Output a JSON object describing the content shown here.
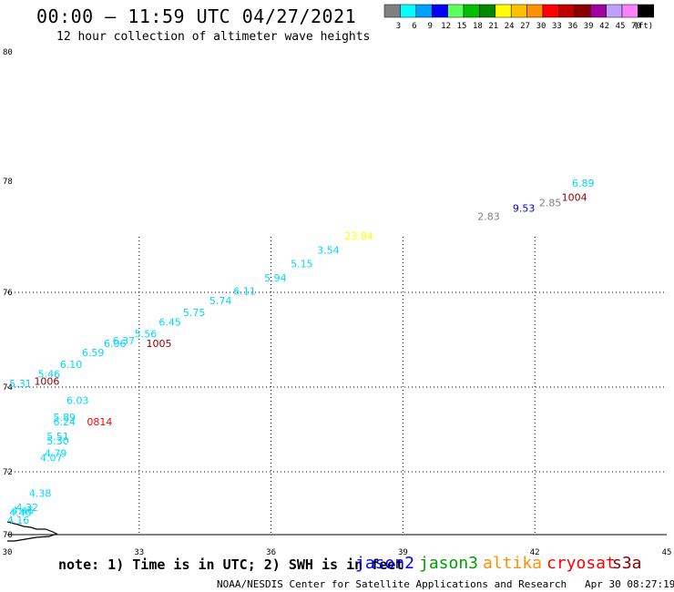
{
  "header": {
    "title": "00:00 – 11:59 UTC 04/27/2021",
    "subtitle": "12 hour collection of altimeter wave heights"
  },
  "colorbar": {
    "swatches": [
      "#808080",
      "#00ffff",
      "#00a0ff",
      "#0000ff",
      "#60ff60",
      "#00c000",
      "#008800",
      "#ffff00",
      "#ffc000",
      "#ff9000",
      "#ff0000",
      "#c00000",
      "#880000",
      "#a000a0",
      "#c0a0ff",
      "#ff80ff",
      "#000000"
    ],
    "labels": [
      "3",
      "6",
      "9",
      "12",
      "15",
      "18",
      "21",
      "24",
      "27",
      "30",
      "33",
      "36",
      "39",
      "42",
      "45",
      "70",
      "(ft)"
    ]
  },
  "chart_data": {
    "type": "scatter",
    "title": "00:00 – 11:59 UTC 04/27/2021",
    "subtitle": "12 hour collection of altimeter wave heights",
    "xlim": [
      30,
      45
    ],
    "ylim": [
      70,
      80
    ],
    "x_ticks": [
      "30",
      "33",
      "36",
      "39",
      "42",
      "45"
    ],
    "y_ticks": [
      "70",
      "72",
      "74",
      "76",
      "78",
      "80"
    ],
    "grid": true,
    "points": [
      {
        "x": 30.25,
        "y": 70.35,
        "label": "4.16",
        "color": "#00d8ff"
      },
      {
        "x": 30.3,
        "y": 70.6,
        "label": "4.40",
        "color": "#00d8ff"
      },
      {
        "x": 30.35,
        "y": 70.65,
        "label": "4.46",
        "color": "#00d8ff"
      },
      {
        "x": 30.45,
        "y": 70.75,
        "label": "4.32",
        "color": "#00d8ff"
      },
      {
        "x": 30.75,
        "y": 71.2,
        "label": "4.38",
        "color": "#00d8ff"
      },
      {
        "x": 31.0,
        "y": 72.25,
        "label": "4.07",
        "color": "#00d8ff"
      },
      {
        "x": 31.1,
        "y": 72.35,
        "label": "4.79",
        "color": "#00d8ff"
      },
      {
        "x": 31.15,
        "y": 72.65,
        "label": "5.30",
        "color": "#00d8ff"
      },
      {
        "x": 31.15,
        "y": 72.75,
        "label": "5.51",
        "color": "#00d8ff"
      },
      {
        "x": 31.3,
        "y": 73.1,
        "label": "6.24",
        "color": "#00d8ff"
      },
      {
        "x": 31.3,
        "y": 73.2,
        "label": "5.89",
        "color": "#00d8ff"
      },
      {
        "x": 31.6,
        "y": 73.6,
        "label": "6.03",
        "color": "#00d8ff"
      },
      {
        "x": 32.1,
        "y": 73.1,
        "label": "0814",
        "color": "#ff0000"
      },
      {
        "x": 30.3,
        "y": 74.0,
        "label": "5.31",
        "color": "#00d8ff"
      },
      {
        "x": 30.9,
        "y": 74.05,
        "label": "1006",
        "color": "#880000"
      },
      {
        "x": 30.95,
        "y": 74.2,
        "label": "5.46",
        "color": "#00d8ff"
      },
      {
        "x": 31.45,
        "y": 74.4,
        "label": "6.10",
        "color": "#00d8ff"
      },
      {
        "x": 31.95,
        "y": 74.65,
        "label": "6.59",
        "color": "#00d8ff"
      },
      {
        "x": 32.45,
        "y": 74.85,
        "label": "6.06",
        "color": "#00d8ff"
      },
      {
        "x": 32.65,
        "y": 74.9,
        "label": "6.37",
        "color": "#00d8ff"
      },
      {
        "x": 33.15,
        "y": 75.05,
        "label": "5.56",
        "color": "#00d8ff"
      },
      {
        "x": 33.45,
        "y": 74.85,
        "label": "1005",
        "color": "#880000"
      },
      {
        "x": 33.7,
        "y": 75.3,
        "label": "6.45",
        "color": "#00d8ff"
      },
      {
        "x": 34.25,
        "y": 75.5,
        "label": "5.75",
        "color": "#00d8ff"
      },
      {
        "x": 34.85,
        "y": 75.75,
        "label": "5.74",
        "color": "#00d8ff"
      },
      {
        "x": 35.4,
        "y": 75.95,
        "label": "6.11",
        "color": "#00d8ff"
      },
      {
        "x": 36.1,
        "y": 76.2,
        "label": "5.94",
        "color": "#00d8ff"
      },
      {
        "x": 36.7,
        "y": 76.45,
        "label": "5.15",
        "color": "#00d8ff"
      },
      {
        "x": 37.3,
        "y": 76.7,
        "label": "3.54",
        "color": "#00d8ff"
      },
      {
        "x": 38.0,
        "y": 76.95,
        "label": "23.84",
        "color": "#ffff00"
      },
      {
        "x": 40.95,
        "y": 77.3,
        "label": "2.83",
        "color": "#808080"
      },
      {
        "x": 41.75,
        "y": 77.45,
        "label": "9.53",
        "color": "#0000c8"
      },
      {
        "x": 42.35,
        "y": 77.55,
        "label": "2.85",
        "color": "#808080"
      },
      {
        "x": 42.9,
        "y": 77.65,
        "label": "1004",
        "color": "#880000"
      },
      {
        "x": 43.1,
        "y": 77.9,
        "label": "6.89",
        "color": "#00d8ff"
      }
    ]
  },
  "footer": {
    "note": "note: 1) Time is in UTC; 2) SWH is in feet",
    "satellites": [
      {
        "name": "jason2",
        "color": "#0000ff"
      },
      {
        "name": "jason3",
        "color": "#00a000"
      },
      {
        "name": "altika",
        "color": "#ff9000"
      },
      {
        "name": "cryosat",
        "color": "#ff0000"
      },
      {
        "name": "s3a",
        "color": "#880000"
      }
    ],
    "credit": "NOAA/NESDIS Center for Satellite Applications and Research",
    "timestamp": "Apr 30 08:27:19 UTC 2021"
  }
}
